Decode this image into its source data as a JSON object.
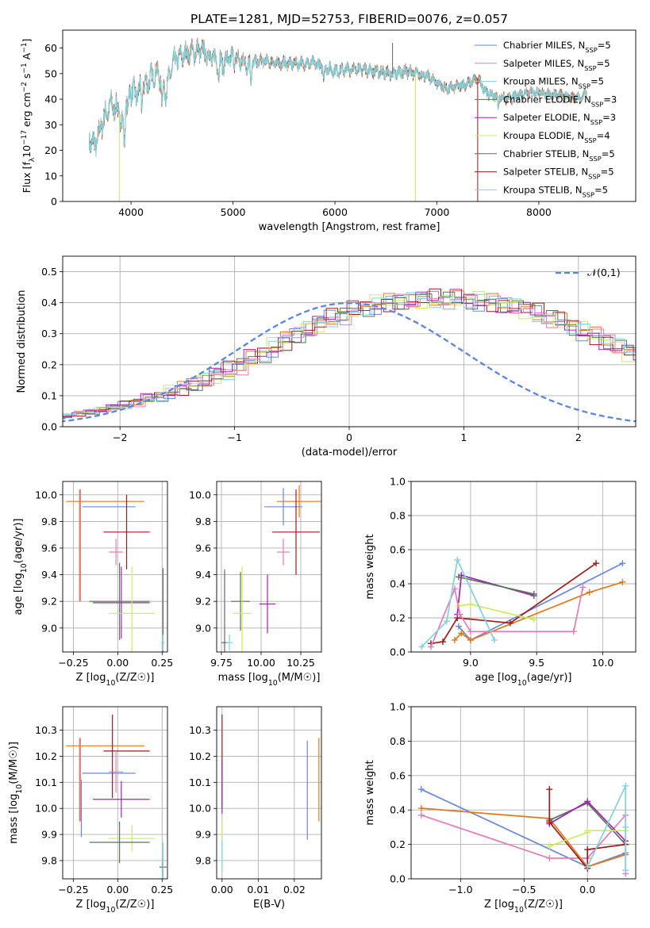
{
  "figure_title": "PLATE=1281, MJD=52753, FIBERID=0076, z=0.057",
  "colors": {
    "blue": "#6688dd",
    "pink": "#e87ab8",
    "cyan": "#7fd3df",
    "green": "#557755",
    "purple": "#a422b5",
    "lime": "#ccee55",
    "gray": "#666666",
    "red": "#a31a1a",
    "orange": "#e07820",
    "grid": "#b0b0b0"
  },
  "chart_data": [
    {
      "id": "spectrum",
      "type": "line",
      "title": "PLATE=1281, MJD=52753, FIBERID=0076, z=0.057",
      "xlabel": "wavelength [Angstrom, rest frame]",
      "ylabel": "Flux [f_λ10^-17 erg cm^-2 s^-1 A^-1]",
      "xlim": [
        3330,
        8950
      ],
      "ylim": [
        0,
        67
      ],
      "xticks": [
        4000,
        5000,
        6000,
        7000,
        8000
      ],
      "yticks": [
        0,
        10,
        20,
        30,
        40,
        50,
        60
      ],
      "grid": false,
      "legend_position": "top-right",
      "legend": [
        {
          "label": "Chabrier MILES, N_SSP=5",
          "color": "blue"
        },
        {
          "label": "Salpeter MILES, N_SSP=5",
          "color": "pink"
        },
        {
          "label": "Kroupa MILES, N_SSP=5",
          "color": "cyan"
        },
        {
          "label": "Chabrier ELODIE, N_SSP=3",
          "color": "green"
        },
        {
          "label": "Salpeter ELODIE, N_SSP=3",
          "color": "purple"
        },
        {
          "label": "Kroupa ELODIE, N_SSP=4",
          "color": "lime"
        },
        {
          "label": "Chabrier STELIB, N_SSP=5",
          "color": "gray"
        },
        {
          "label": "Salpeter STELIB, N_SSP=5",
          "color": "red"
        },
        {
          "label": "Kroupa STELIB, N_SSP=5",
          "color": "cyan"
        }
      ],
      "continuum": [
        [
          3590,
          24
        ],
        [
          3650,
          22
        ],
        [
          3720,
          31
        ],
        [
          3800,
          38
        ],
        [
          3870,
          36
        ],
        [
          3920,
          30
        ],
        [
          3980,
          44
        ],
        [
          4050,
          42
        ],
        [
          4150,
          46
        ],
        [
          4250,
          51
        ],
        [
          4340,
          43
        ],
        [
          4420,
          55
        ],
        [
          4550,
          58
        ],
        [
          4700,
          59
        ],
        [
          4800,
          56
        ],
        [
          4900,
          54
        ],
        [
          5000,
          56
        ],
        [
          5150,
          54
        ],
        [
          5300,
          55
        ],
        [
          5450,
          54
        ],
        [
          5600,
          54
        ],
        [
          5800,
          54
        ],
        [
          6000,
          51
        ],
        [
          6200,
          52
        ],
        [
          6400,
          51
        ],
        [
          6560,
          50
        ],
        [
          6700,
          51
        ],
        [
          6900,
          49
        ],
        [
          7100,
          44
        ],
        [
          7300,
          46
        ],
        [
          7400,
          48
        ],
        [
          7500,
          42
        ],
        [
          7700,
          40
        ],
        [
          7900,
          43
        ],
        [
          8100,
          42
        ],
        [
          8300,
          41
        ],
        [
          8420,
          40
        ],
        [
          8470,
          44
        ]
      ],
      "spikes": [
        {
          "x": 6565,
          "y": 62,
          "color": "gray"
        },
        {
          "x": 3885,
          "y": 0,
          "color": "lime"
        },
        {
          "x": 6790,
          "y": 0,
          "color": "lime"
        },
        {
          "x": 7400,
          "y": 0,
          "color": "red"
        }
      ]
    },
    {
      "id": "residuals",
      "type": "histogram",
      "xlabel": "(data-model)/error",
      "ylabel": "Normed distribution",
      "xlim": [
        -2.5,
        2.5
      ],
      "ylim": [
        0,
        0.55
      ],
      "xticks": [
        -2,
        -1,
        0,
        1,
        2
      ],
      "yticks": [
        0.0,
        0.1,
        0.2,
        0.3,
        0.4,
        0.5
      ],
      "grid": true,
      "legend_position": "top-right",
      "reference_label": "𝒩(0,1)",
      "reference_color": "#5b86e0",
      "bin_width": 0.1,
      "base_profile": [
        0.02,
        0.022,
        0.025,
        0.028,
        0.032,
        0.036,
        0.042,
        0.048,
        0.055,
        0.062,
        0.07,
        0.08,
        0.09,
        0.1,
        0.112,
        0.124,
        0.138,
        0.15,
        0.165,
        0.18,
        0.2,
        0.218,
        0.237,
        0.256,
        0.276,
        0.296,
        0.314,
        0.332,
        0.35,
        0.362,
        0.375,
        0.386,
        0.394,
        0.4,
        0.404,
        0.407,
        0.41,
        0.412,
        0.413,
        0.412,
        0.41,
        0.405,
        0.4,
        0.394,
        0.386,
        0.377,
        0.366,
        0.353,
        0.34,
        0.325,
        0.309,
        0.292,
        0.275,
        0.257,
        0.239,
        0.221,
        0.203,
        0.185,
        0.168,
        0.152,
        0.137,
        0.123,
        0.11,
        0.098,
        0.087,
        0.077,
        0.068,
        0.06,
        0.053,
        0.047,
        0.041,
        0.036,
        0.032,
        0.028,
        0.025,
        0.022,
        0.02,
        0.018,
        0.017,
        0.016
      ],
      "series_colors": [
        "blue",
        "orange",
        "green",
        "lime",
        "red",
        "pink",
        "purple",
        "cyan"
      ]
    },
    {
      "id": "age_vs_Z",
      "type": "errorbar",
      "xlabel": "Z [log10(Z/Z☉)]",
      "ylabel": "age  [log10(age/yr)]",
      "xlim": [
        -0.31,
        0.28
      ],
      "ylim": [
        8.82,
        10.1
      ],
      "xticks": [
        -0.25,
        0.0,
        0.25
      ],
      "xticklabels": [
        "−0.25",
        "0.00",
        "0.25"
      ],
      "yticks": [
        9.0,
        9.2,
        9.4,
        9.6,
        9.8,
        10.0
      ],
      "grid": true,
      "points": [
        {
          "x": -0.05,
          "xerr": 0.15,
          "y": 9.91,
          "yerr": 0.0,
          "color": "blue"
        },
        {
          "x": -0.07,
          "xerr": 0.22,
          "y": 9.95,
          "yerr": 0.0,
          "color": "orange"
        },
        {
          "x": -0.21,
          "xerr": 0.0,
          "y": 9.62,
          "yerr": 0.42,
          "color": "pink"
        },
        {
          "x": -0.215,
          "xerr": 0.0,
          "y": 9.62,
          "yerr": 0.42,
          "color": "orange"
        },
        {
          "x": 0.05,
          "xerr": 0.13,
          "y": 9.72,
          "yerr": 0.28,
          "color": "red"
        },
        {
          "x": -0.01,
          "xerr": 0.04,
          "y": 9.57,
          "yerr": 0.1,
          "color": "pink"
        },
        {
          "x": 0.02,
          "xerr": 0.16,
          "y": 9.19,
          "yerr": 0.27,
          "color": "purple"
        },
        {
          "x": 0.01,
          "xerr": 0.17,
          "y": 9.2,
          "yerr": 0.29,
          "color": "green"
        },
        {
          "x": 0.08,
          "xerr": 0.13,
          "y": 9.11,
          "yerr": 0.35,
          "color": "lime"
        },
        {
          "x": 0.255,
          "xerr": 0.0,
          "y": 9.13,
          "yerr": 0.32,
          "color": "gray"
        },
        {
          "x": 0.255,
          "xerr": 0.01,
          "y": 8.89,
          "yerr": 0.06,
          "color": "cyan"
        }
      ]
    },
    {
      "id": "age_vs_mass",
      "type": "errorbar",
      "xlabel": "mass [log10(M/M☉)]",
      "ylabel": "",
      "xlim": [
        9.72,
        10.38
      ],
      "ylim": [
        8.82,
        10.1
      ],
      "xticks": [
        9.75,
        10.0,
        10.25
      ],
      "yticks": [
        9.0,
        9.2,
        9.4,
        9.6,
        9.8,
        10.0
      ],
      "grid": true,
      "points": [
        {
          "x": 10.14,
          "xerr": 0.12,
          "y": 9.91,
          "yerr": 0.14,
          "color": "blue"
        },
        {
          "x": 10.24,
          "xerr": 0.14,
          "y": 9.95,
          "yerr": 0.12,
          "color": "orange"
        },
        {
          "x": 10.22,
          "xerr": 0.15,
          "y": 9.72,
          "yerr": 0.32,
          "color": "red"
        },
        {
          "x": 10.14,
          "xerr": 0.04,
          "y": 9.57,
          "yerr": 0.1,
          "color": "pink"
        },
        {
          "x": 10.04,
          "xerr": 0.05,
          "y": 9.18,
          "yerr": 0.22,
          "color": "purple"
        },
        {
          "x": 9.87,
          "xerr": 0.06,
          "y": 9.2,
          "yerr": 0.22,
          "color": "green"
        },
        {
          "x": 9.88,
          "xerr": 0.06,
          "y": 9.11,
          "yerr": 0.35,
          "color": "lime"
        },
        {
          "x": 9.77,
          "xerr": 0.02,
          "y": 8.89,
          "yerr": 0.55,
          "color": "gray"
        },
        {
          "x": 9.8,
          "xerr": 0.02,
          "y": 8.89,
          "yerr": 0.06,
          "color": "cyan"
        }
      ]
    },
    {
      "id": "weight_vs_age",
      "type": "line",
      "xlabel": "age  [log10(age/yr)]",
      "ylabel": "mass weight",
      "xlim": [
        8.55,
        10.25
      ],
      "ylim": [
        0,
        1.0
      ],
      "xticks": [
        9.0,
        9.5,
        10.0
      ],
      "yticks": [
        0.0,
        0.2,
        0.4,
        0.6,
        0.8,
        1.0
      ],
      "grid": true,
      "series": [
        {
          "color": "blue",
          "x": [
            8.91,
            9.0,
            10.15
          ],
          "y": [
            0.15,
            0.07,
            0.52
          ]
        },
        {
          "color": "orange",
          "x": [
            8.88,
            8.93,
            9.0,
            9.9,
            10.15
          ],
          "y": [
            0.07,
            0.11,
            0.07,
            0.35,
            0.41
          ]
        },
        {
          "color": "red",
          "x": [
            8.7,
            8.79,
            8.9,
            9.3,
            9.95
          ],
          "y": [
            0.05,
            0.06,
            0.2,
            0.17,
            0.52
          ]
        },
        {
          "color": "purple",
          "x": [
            8.9,
            8.93,
            9.48
          ],
          "y": [
            0.22,
            0.45,
            0.33
          ]
        },
        {
          "color": "green",
          "x": [
            8.91,
            9.48
          ],
          "y": [
            0.44,
            0.34
          ]
        },
        {
          "color": "lime",
          "x": [
            8.91,
            9.0,
            9.48
          ],
          "y": [
            0.27,
            0.28,
            0.19
          ]
        },
        {
          "color": "pink",
          "x": [
            8.7,
            8.88,
            8.92,
            9.0,
            9.78,
            9.85
          ],
          "y": [
            0.03,
            0.37,
            0.22,
            0.12,
            0.12,
            0.38
          ]
        },
        {
          "color": "cyan",
          "x": [
            8.63,
            8.82,
            8.9,
            9.18
          ],
          "y": [
            0.03,
            0.18,
            0.54,
            0.07
          ]
        }
      ]
    },
    {
      "id": "mass_vs_Z",
      "type": "errorbar",
      "xlabel": "Z [log10(Z/Z☉)]",
      "ylabel": "mass [log10(M/M☉)]",
      "xlim": [
        -0.31,
        0.28
      ],
      "ylim": [
        9.73,
        10.39
      ],
      "xticks": [
        -0.25,
        0.0,
        0.25
      ],
      "xticklabels": [
        "−0.25",
        "0.00",
        "0.25"
      ],
      "yticks": [
        9.8,
        9.9,
        10.0,
        10.1,
        10.2,
        10.3
      ],
      "grid": true,
      "points": [
        {
          "x": -0.05,
          "xerr": 0.15,
          "y": 10.135,
          "yerr": 0.0,
          "color": "blue"
        },
        {
          "x": -0.07,
          "xerr": 0.22,
          "y": 10.24,
          "yerr": 0.0,
          "color": "orange"
        },
        {
          "x": -0.215,
          "xerr": 0.0,
          "y": 10.11,
          "yerr": 0.16,
          "color": "orange"
        },
        {
          "x": -0.21,
          "xerr": 0.0,
          "y": 10.11,
          "yerr": 0.16,
          "color": "pink"
        },
        {
          "x": -0.205,
          "xerr": 0.0,
          "y": 10.0,
          "yerr": 0.11,
          "color": "blue"
        },
        {
          "x": 0.05,
          "xerr": 0.13,
          "y": 10.22,
          "yerr": 0.0,
          "color": "red"
        },
        {
          "x": -0.03,
          "xerr": 0.0,
          "y": 10.2,
          "yerr": 0.16,
          "color": "red"
        },
        {
          "x": -0.01,
          "xerr": 0.04,
          "y": 10.14,
          "yerr": 0.08,
          "color": "pink"
        },
        {
          "x": 0.02,
          "xerr": 0.16,
          "y": 10.035,
          "yerr": 0.07,
          "color": "purple"
        },
        {
          "x": 0.08,
          "xerr": 0.13,
          "y": 9.885,
          "yerr": 0.05,
          "color": "lime"
        },
        {
          "x": 0.01,
          "xerr": 0.17,
          "y": 9.87,
          "yerr": 0.08,
          "color": "green"
        },
        {
          "x": 0.255,
          "xerr": 0.02,
          "y": 9.775,
          "yerr": 0.03,
          "color": "gray"
        },
        {
          "x": 0.255,
          "xerr": 0.0,
          "y": 9.8,
          "yerr": 0.07,
          "color": "cyan"
        }
      ]
    },
    {
      "id": "mass_vs_ebv",
      "type": "errorbar",
      "xlabel": "E(B-V)",
      "ylabel": "",
      "xlim": [
        -0.0015,
        0.0275
      ],
      "ylim": [
        9.73,
        10.39
      ],
      "xticks": [
        0.0,
        0.01,
        0.02
      ],
      "xticklabels": [
        "0.00",
        "0.01",
        "0.02"
      ],
      "yticks": [
        9.8,
        9.9,
        10.0,
        10.1,
        10.2,
        10.3
      ],
      "grid": true,
      "points": [
        {
          "x": 0.0,
          "y": 10.18,
          "yerr": 0.18,
          "color": "red"
        },
        {
          "x": 0.0,
          "y": 10.08,
          "yerr": 0.1,
          "color": "purple"
        },
        {
          "x": 0.0,
          "y": 9.88,
          "yerr": 0.07,
          "color": "lime"
        },
        {
          "x": 0.0,
          "y": 9.82,
          "yerr": 0.06,
          "color": "cyan"
        },
        {
          "x": 0.0236,
          "y": 10.07,
          "yerr": 0.19,
          "color": "blue"
        },
        {
          "x": 0.0268,
          "y": 10.11,
          "yerr": 0.16,
          "color": "orange"
        }
      ]
    },
    {
      "id": "weight_vs_Z",
      "type": "line",
      "xlabel": "Z [log10(Z/Z☉)]",
      "ylabel": "mass weight",
      "xlim": [
        -1.39,
        0.38
      ],
      "ylim": [
        0,
        1.0
      ],
      "xticks": [
        -1.0,
        -0.5,
        0.0
      ],
      "xticklabels": [
        "−1.0",
        "−0.5",
        "0.0"
      ],
      "yticks": [
        0.0,
        0.2,
        0.4,
        0.6,
        0.8,
        1.0
      ],
      "grid": true,
      "series": [
        {
          "color": "blue",
          "x": [
            -1.31,
            0.0,
            0.3,
            0.3
          ],
          "y": [
            0.52,
            0.07,
            0.15,
            0.2
          ]
        },
        {
          "color": "orange",
          "x": [
            -1.31,
            -0.3,
            0.0,
            0.3
          ],
          "y": [
            0.41,
            0.35,
            0.07,
            0.14
          ]
        },
        {
          "color": "pink",
          "x": [
            -1.31,
            -0.3,
            0.0,
            0.3,
            0.3
          ],
          "y": [
            0.37,
            0.12,
            0.12,
            0.37,
            0.03
          ]
        },
        {
          "color": "green",
          "x": [
            -0.3,
            0.0,
            0.3
          ],
          "y": [
            0.34,
            0.44,
            0.2
          ]
        },
        {
          "color": "purple",
          "x": [
            -0.3,
            0.0,
            0.3
          ],
          "y": [
            0.32,
            0.45,
            0.22
          ]
        },
        {
          "color": "red",
          "x": [
            -0.3,
            -0.3,
            0.0,
            0.0,
            0.3
          ],
          "y": [
            0.52,
            0.33,
            0.06,
            0.17,
            0.2
          ]
        },
        {
          "color": "lime",
          "x": [
            -0.3,
            0.0,
            0.0,
            0.3
          ],
          "y": [
            0.19,
            0.27,
            0.28,
            0.28
          ]
        },
        {
          "color": "cyan",
          "x": [
            0.0,
            0.3,
            0.3,
            0.3
          ],
          "y": [
            0.07,
            0.54,
            0.05,
            0.3
          ]
        }
      ]
    }
  ]
}
